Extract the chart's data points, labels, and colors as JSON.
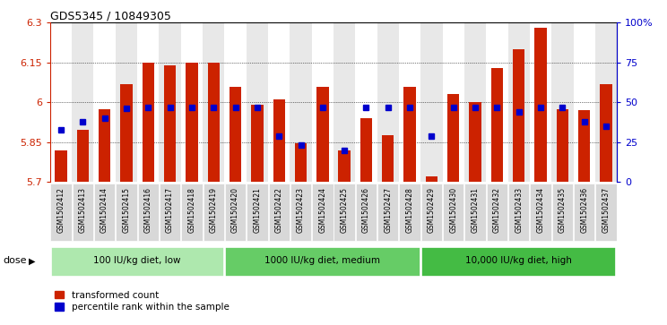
{
  "title": "GDS5345 / 10849305",
  "samples": [
    "GSM1502412",
    "GSM1502413",
    "GSM1502414",
    "GSM1502415",
    "GSM1502416",
    "GSM1502417",
    "GSM1502418",
    "GSM1502419",
    "GSM1502420",
    "GSM1502421",
    "GSM1502422",
    "GSM1502423",
    "GSM1502424",
    "GSM1502425",
    "GSM1502426",
    "GSM1502427",
    "GSM1502428",
    "GSM1502429",
    "GSM1502430",
    "GSM1502431",
    "GSM1502432",
    "GSM1502433",
    "GSM1502434",
    "GSM1502435",
    "GSM1502436",
    "GSM1502437"
  ],
  "bar_values": [
    5.82,
    5.895,
    5.975,
    6.07,
    6.15,
    6.14,
    6.15,
    6.15,
    6.06,
    5.99,
    6.01,
    5.845,
    6.06,
    5.82,
    5.94,
    5.875,
    6.06,
    5.72,
    6.03,
    6.0,
    6.13,
    6.2,
    6.28,
    5.975,
    5.97,
    6.07
  ],
  "percentile_values": [
    33,
    38,
    40,
    46,
    47,
    47,
    47,
    47,
    47,
    47,
    29,
    23,
    47,
    20,
    47,
    47,
    47,
    29,
    47,
    47,
    47,
    44,
    47,
    47,
    38,
    35
  ],
  "groups": [
    {
      "label": "100 IU/kg diet, low",
      "start": 0,
      "end": 8,
      "color": "#aee8ae"
    },
    {
      "label": "1000 IU/kg diet, medium",
      "start": 8,
      "end": 17,
      "color": "#66cc66"
    },
    {
      "label": "10,000 IU/kg diet, high",
      "start": 17,
      "end": 26,
      "color": "#44bb44"
    }
  ],
  "y_min": 5.7,
  "y_max": 6.3,
  "y_ticks": [
    5.7,
    5.85,
    6.0,
    6.15,
    6.3
  ],
  "y_tick_labels": [
    "5.7",
    "5.85",
    "6",
    "6.15",
    "6.3"
  ],
  "right_y_ticks": [
    0,
    25,
    50,
    75,
    100
  ],
  "right_y_tick_labels": [
    "0",
    "25",
    "50",
    "75",
    "100%"
  ],
  "bar_color": "#cc2200",
  "dot_color": "#0000cc",
  "baseline": 5.7,
  "dose_label": "dose",
  "legend_items": [
    {
      "label": "transformed count",
      "color": "#cc2200"
    },
    {
      "label": "percentile rank within the sample",
      "color": "#0000cc"
    }
  ]
}
